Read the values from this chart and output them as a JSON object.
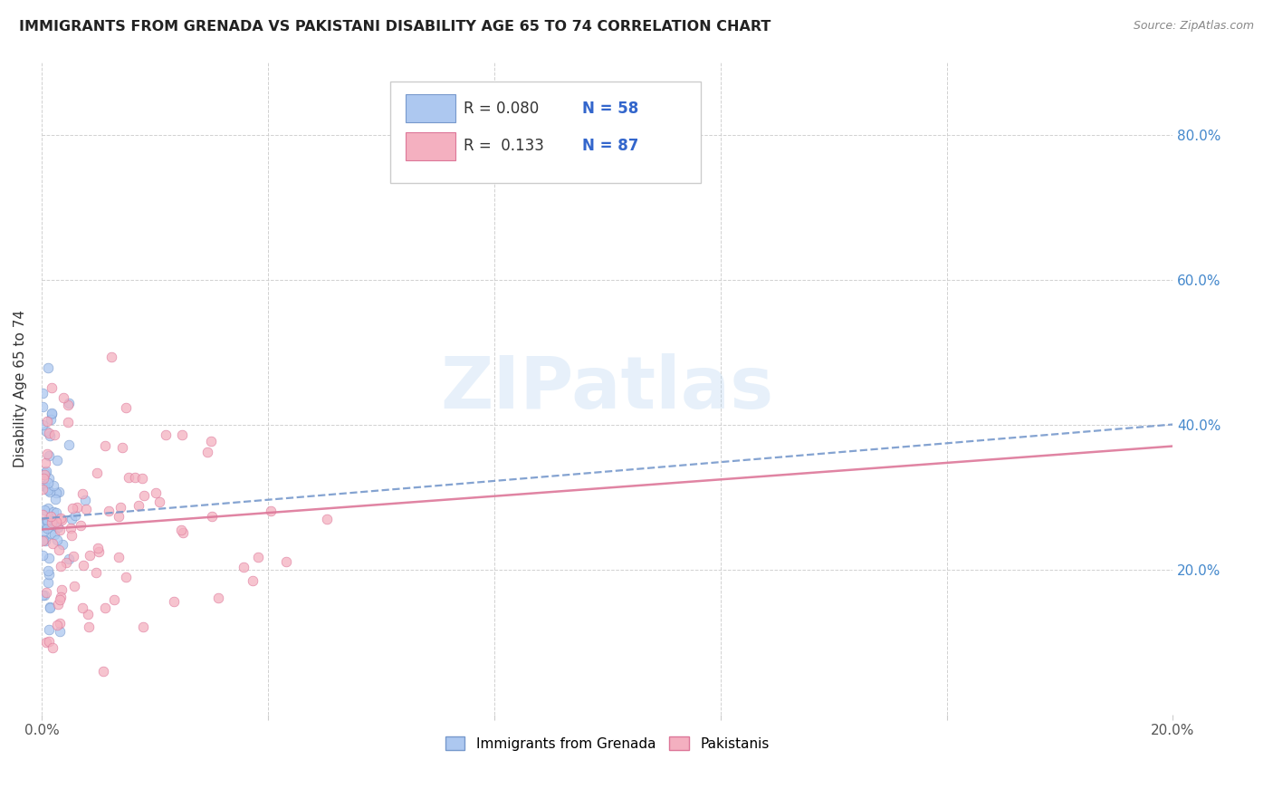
{
  "title": "IMMIGRANTS FROM GRENADA VS PAKISTANI DISABILITY AGE 65 TO 74 CORRELATION CHART",
  "source": "Source: ZipAtlas.com",
  "ylabel": "Disability Age 65 to 74",
  "xlim": [
    0.0,
    0.2
  ],
  "ylim": [
    0.0,
    0.9
  ],
  "series1_color": "#adc8f0",
  "series1_edge": "#7799cc",
  "series2_color": "#f4b0c0",
  "series2_edge": "#dd7799",
  "trend1_color": "#7799cc",
  "trend2_color": "#dd7799",
  "R1": 0.08,
  "N1": 58,
  "R2": 0.133,
  "N2": 87,
  "legend_label1": "Immigrants from Grenada",
  "legend_label2": "Pakistanis",
  "background_color": "#ffffff",
  "grid_color": "#cccccc",
  "title_color": "#222222",
  "source_color": "#888888",
  "ytick_color": "#4488cc",
  "xtick_color": "#555555"
}
